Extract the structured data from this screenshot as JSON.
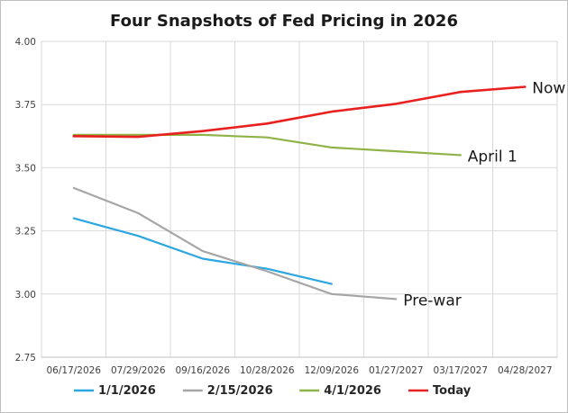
{
  "chart_data": {
    "type": "line",
    "title": "Four Snapshots of Fed Pricing in 2026",
    "xlabel": "",
    "ylabel": "",
    "ylim": [
      2.75,
      4.0
    ],
    "yticks": [
      "2.75",
      "3.00",
      "3.25",
      "3.50",
      "3.75",
      "4.00"
    ],
    "ytick_values": [
      2.75,
      3.0,
      3.25,
      3.5,
      3.75,
      4.0
    ],
    "x": [
      "06/17/2026",
      "07/29/2026",
      "09/16/2026",
      "10/28/2026",
      "12/09/2026",
      "01/27/2027",
      "03/17/2027",
      "04/28/2027"
    ],
    "grid": true,
    "legend_position": "bottom",
    "series": [
      {
        "name": "1/1/2026",
        "color": "#2aa6e0",
        "values": [
          3.3,
          3.23,
          3.14,
          3.1,
          3.04,
          null,
          null,
          null
        ]
      },
      {
        "name": "2/15/2026",
        "color": "#a6a6a6",
        "values": [
          3.42,
          3.32,
          3.17,
          3.09,
          3.0,
          2.98,
          null,
          null
        ]
      },
      {
        "name": "4/1/2026",
        "color": "#8fb347",
        "values": [
          3.63,
          3.63,
          3.63,
          3.62,
          3.58,
          3.565,
          3.55,
          null
        ]
      },
      {
        "name": "Today",
        "color": "#e8201f",
        "values": [
          3.625,
          3.622,
          3.645,
          3.675,
          3.722,
          3.753,
          3.8,
          3.82
        ]
      }
    ],
    "annotations": [
      {
        "text": "Now",
        "series": 3,
        "point": 7
      },
      {
        "text": "April 1",
        "series": 2,
        "point": 6
      },
      {
        "text": "Pre-war",
        "series": 1,
        "point": 5
      }
    ]
  }
}
